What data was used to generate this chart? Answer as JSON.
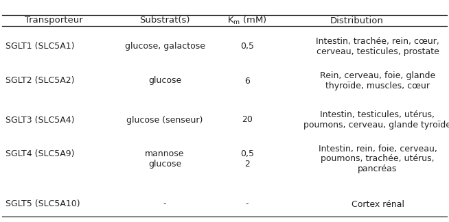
{
  "col_headers": [
    "Transporteur",
    "Substrat(s)",
    "K_m (mM)",
    "Distribution"
  ],
  "header_fontsize": 9.5,
  "body_fontsize": 9.0,
  "background_color": "#ffffff",
  "text_color": "#222222",
  "rows": [
    {
      "transporteur": "SGLT1 (SLC5A1)",
      "substrat": "glucose, galactose",
      "km": "0,5",
      "distribution_lines": [
        "Intestin, trachée, rein, cœur,",
        "cerveau, testicules, prostate"
      ]
    },
    {
      "transporteur": "SGLT2 (SLC5A2)",
      "substrat": "glucose",
      "km": "6",
      "distribution_lines": [
        "Rein, cerveau, foie, glande",
        "thyroïde, muscles, cœur"
      ]
    },
    {
      "transporteur": "SGLT3 (SLC5A4)",
      "substrat": "glucose (senseur)",
      "km": "20",
      "distribution_lines": [
        "Intestin, testicules, utérus,",
        "poumons, cerveau, glande tyroïde"
      ]
    },
    {
      "transporteur": "SGLT4 (SLC5A9)",
      "substrat_lines": [
        "mannose",
        "glucose"
      ],
      "km_lines": [
        "0,5",
        "2"
      ],
      "distribution_lines": [
        "Intestin, rein, foie, cerveau,",
        "poumons, trachée, utérus,",
        "pancréas"
      ]
    },
    {
      "transporteur": "SGLT5 (SLC5A10)",
      "substrat": "-",
      "km": "-",
      "distribution_lines": [
        "Cortex rénal"
      ]
    }
  ]
}
